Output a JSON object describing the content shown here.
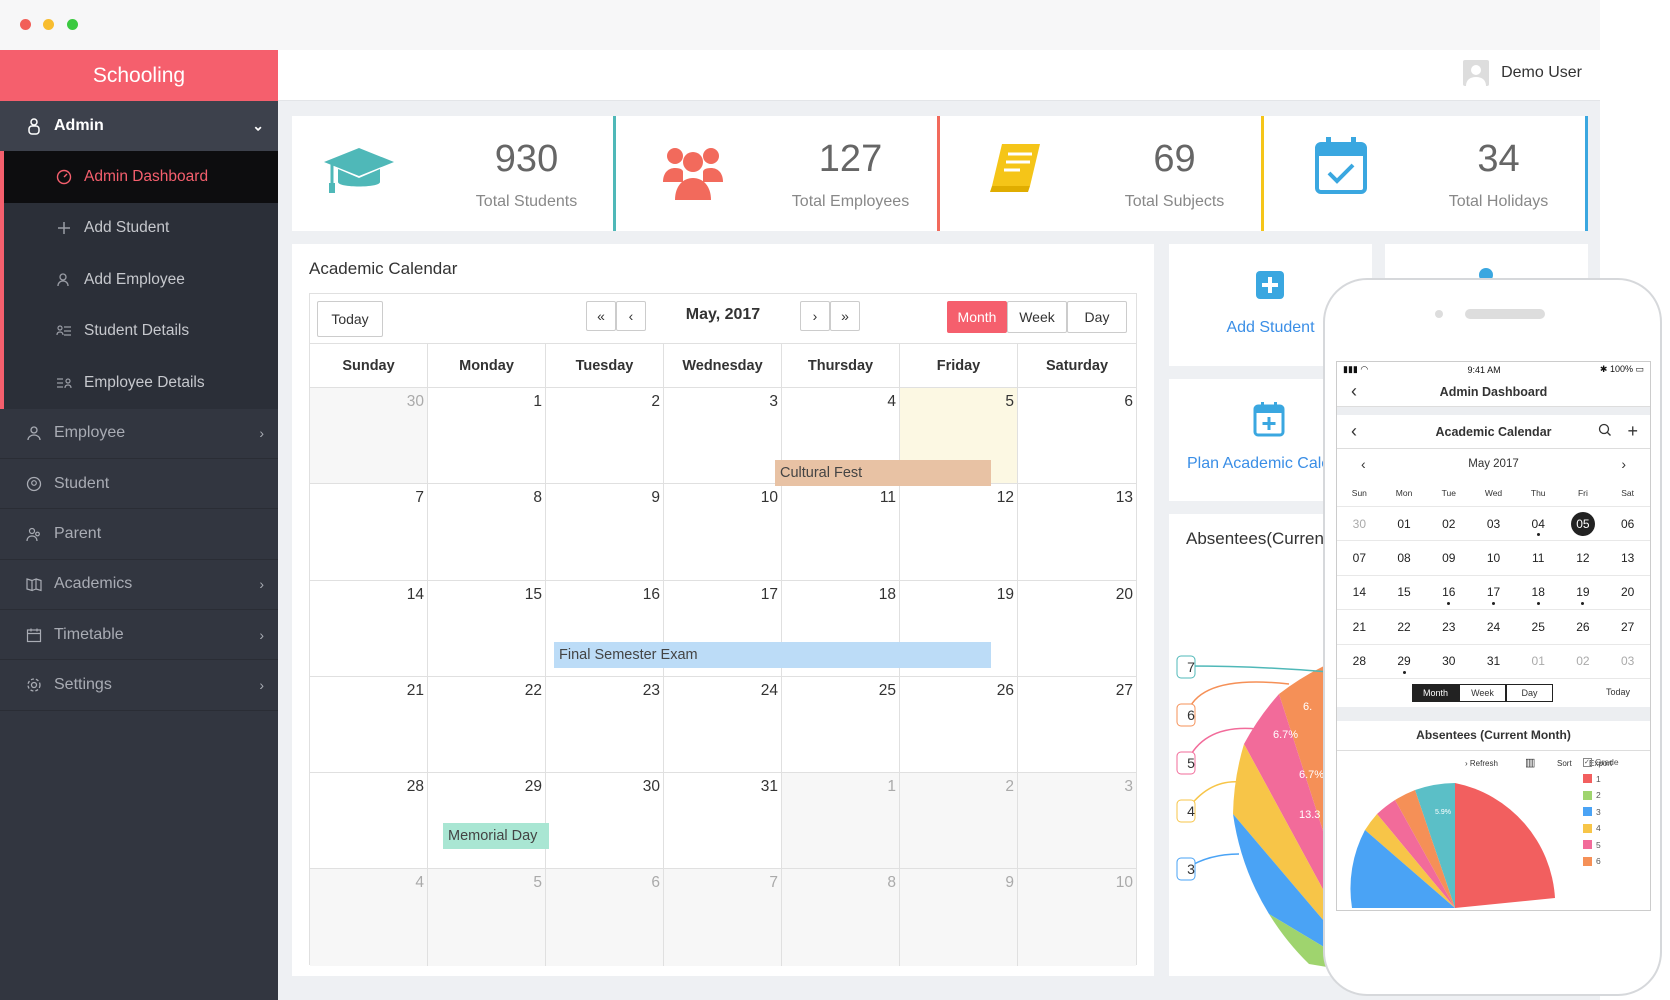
{
  "sidebar": {
    "brand": "Schooling",
    "admin_label": "Admin",
    "admin_items": [
      {
        "label": "Admin Dashboard",
        "active": true
      },
      {
        "label": "Add Student"
      },
      {
        "label": "Add Employee"
      },
      {
        "label": "Student Details"
      },
      {
        "label": "Employee Details"
      }
    ],
    "items": [
      {
        "label": "Employee",
        "chevron": true
      },
      {
        "label": "Student",
        "chevron": false
      },
      {
        "label": "Parent",
        "chevron": false
      },
      {
        "label": "Academics",
        "chevron": true
      },
      {
        "label": "Timetable",
        "chevron": true
      },
      {
        "label": "Settings",
        "chevron": true
      }
    ]
  },
  "header": {
    "user_name": "Demo User"
  },
  "stats": [
    {
      "value": "930",
      "label": "Total Students",
      "icon": "graduation-cap-icon",
      "color": "#4fb8b8"
    },
    {
      "value": "127",
      "label": "Total Employees",
      "icon": "users-group-icon",
      "color": "#f26a5c"
    },
    {
      "value": "69",
      "label": "Total Subjects",
      "icon": "book-icon",
      "color": "#f5c518"
    },
    {
      "value": "34",
      "label": "Total Holidays",
      "icon": "calendar-check-icon",
      "color": "#3aa7e0"
    }
  ],
  "calendar": {
    "title": "Academic Calendar",
    "today_label": "Today",
    "month_label": "May, 2017",
    "prev_year": "«",
    "prev": "‹",
    "next": "›",
    "next_year": "»",
    "views": [
      "Month",
      "Week",
      "Day"
    ],
    "active_view": "Month",
    "days": [
      "Sunday",
      "Monday",
      "Tuesday",
      "Wednesday",
      "Thursday",
      "Friday",
      "Saturday"
    ],
    "weeks": [
      [
        "30",
        "1",
        "2",
        "3",
        "4",
        "5",
        "6"
      ],
      [
        "7",
        "8",
        "9",
        "10",
        "11",
        "12",
        "13"
      ],
      [
        "14",
        "15",
        "16",
        "17",
        "18",
        "19",
        "20"
      ],
      [
        "21",
        "22",
        "23",
        "24",
        "25",
        "26",
        "27"
      ],
      [
        "28",
        "29",
        "30",
        "31",
        "1",
        "2",
        "3"
      ],
      [
        "4",
        "5",
        "6",
        "7",
        "8",
        "9",
        "10"
      ]
    ],
    "events": [
      {
        "title": "Cultural Fest",
        "color": "#e8c2a4"
      },
      {
        "title": "Final Semester Exam",
        "color": "#bcdcf7"
      },
      {
        "title": "Memorial Day",
        "color": "#a9e6d3"
      }
    ]
  },
  "actions": {
    "add_student": "Add Student",
    "plan_calendar": "Plan Academic Cale"
  },
  "absentees": {
    "title": "Absentees(Current",
    "callouts": [
      "7",
      "6",
      "5",
      "4",
      "3"
    ],
    "slice_labels": [
      "6.",
      "6.7%",
      "6.7%",
      "13.3"
    ]
  },
  "phone": {
    "time": "9:41 AM",
    "battery": "100%",
    "header": "Admin Dashboard",
    "cal_title": "Academic Calendar",
    "month": "May 2017",
    "dow": [
      "Sun",
      "Mon",
      "Tue",
      "Wed",
      "Thu",
      "Fri",
      "Sat"
    ],
    "weeks": [
      [
        "30",
        "01",
        "02",
        "03",
        "04",
        "05",
        "06"
      ],
      [
        "07",
        "08",
        "09",
        "10",
        "11",
        "12",
        "13"
      ],
      [
        "14",
        "15",
        "16",
        "17",
        "18",
        "19",
        "20"
      ],
      [
        "21",
        "22",
        "23",
        "24",
        "25",
        "26",
        "27"
      ],
      [
        "28",
        "29",
        "30",
        "31",
        "01",
        "02",
        "03"
      ]
    ],
    "views": [
      "Month",
      "Week",
      "Day"
    ],
    "today": "Today",
    "abs_title": "Absentees (Current Month)",
    "toolbar": [
      "Refresh",
      "Sort",
      "Export"
    ],
    "legend_title": "Grade",
    "legend": [
      {
        "label": "1",
        "color": "#f25f5f"
      },
      {
        "label": "2",
        "color": "#9fd46e"
      },
      {
        "label": "3",
        "color": "#4aa3f5"
      },
      {
        "label": "4",
        "color": "#f7c548"
      },
      {
        "label": "5",
        "color": "#f26b9a"
      },
      {
        "label": "6",
        "color": "#f59057"
      }
    ],
    "pie_label": "5.9%"
  }
}
